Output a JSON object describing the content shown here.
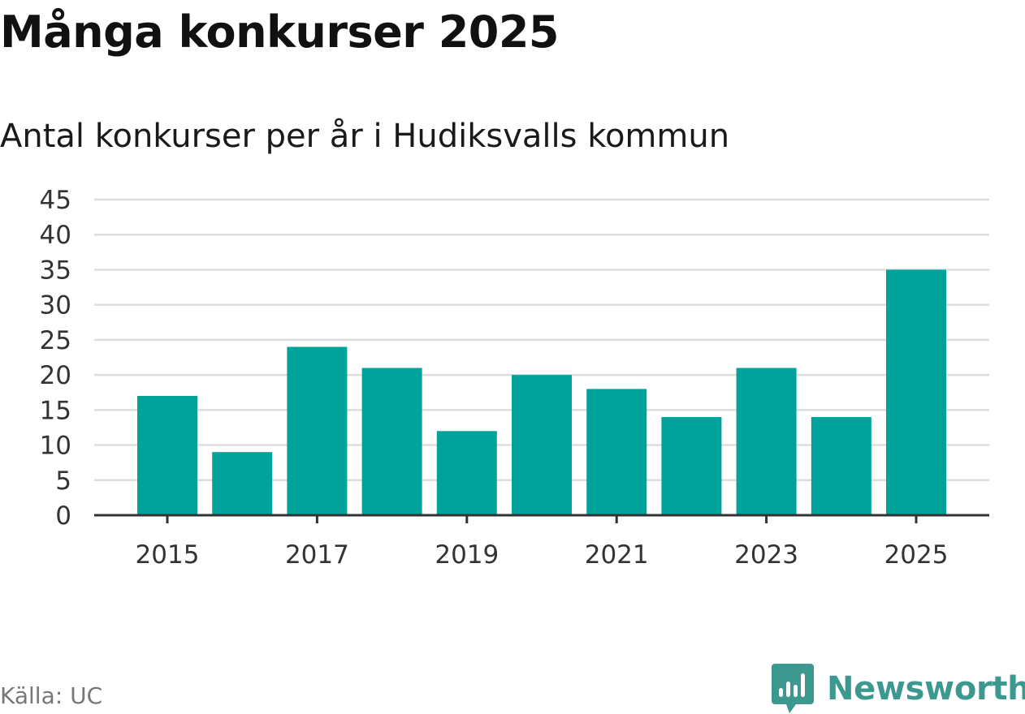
{
  "header": {
    "title": "Många konkurser 2025",
    "subtitle": "Antal konkurser per år i Hudiksvalls kommun"
  },
  "footer": {
    "source": "Källa: UC",
    "brand": "Newsworthy",
    "brand_icon": "bar-chart-speech-bubble-icon"
  },
  "colors": {
    "bar": "#00a39a",
    "grid": "#dddddd",
    "axis": "#333333",
    "brand": "#3d9990"
  },
  "chart_data": {
    "type": "bar",
    "categories": [
      "2015",
      "2016",
      "2017",
      "2018",
      "2019",
      "2020",
      "2021",
      "2022",
      "2023",
      "2024",
      "2025"
    ],
    "values": [
      17,
      9,
      24,
      21,
      12,
      20,
      18,
      14,
      21,
      14,
      35
    ],
    "x_tick_labels": [
      "2015",
      "2017",
      "2019",
      "2021",
      "2023",
      "2025"
    ],
    "y_ticks": [
      0,
      5,
      10,
      15,
      20,
      25,
      30,
      35,
      40,
      45
    ],
    "ylim": [
      0,
      45
    ],
    "title": "Många konkurser 2025",
    "subtitle": "Antal konkurser per år i Hudiksvalls kommun",
    "xlabel": "",
    "ylabel": "",
    "grid": true,
    "legend": "none"
  }
}
